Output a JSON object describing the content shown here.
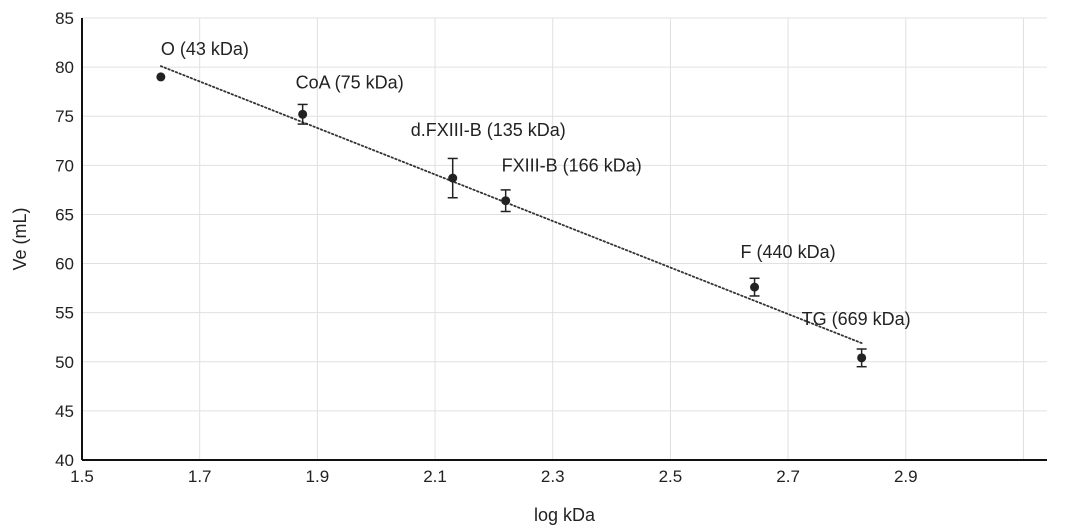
{
  "chart_data": {
    "type": "scatter",
    "title": "",
    "xlabel": "log kDa",
    "ylabel": "Ve (mL)",
    "xlim": [
      1.5,
      3.14
    ],
    "ylim": [
      40,
      85
    ],
    "xticks": [
      "1.5",
      "1.7",
      "1.9",
      "2.1",
      "2.3",
      "2.5",
      "2.7",
      "2.9"
    ],
    "yticks": [
      "40",
      "45",
      "50",
      "55",
      "60",
      "65",
      "70",
      "75",
      "80",
      "85"
    ],
    "grid": "vertical-and-horizontal",
    "points": [
      {
        "x": 1.634,
        "y": 79.0,
        "err": 0.0,
        "label": "O (43 kDa)"
      },
      {
        "x": 1.875,
        "y": 75.2,
        "err": 1.0,
        "label": "CoA (75 kDa)"
      },
      {
        "x": 2.13,
        "y": 68.7,
        "err": 2.0,
        "label": "d.FXIII-B (135 kDa)"
      },
      {
        "x": 2.22,
        "y": 66.4,
        "err": 1.1,
        "label": "FXIII-B (166 kDa)"
      },
      {
        "x": 2.643,
        "y": 57.6,
        "err": 0.9,
        "label": "F (440 kDa)"
      },
      {
        "x": 2.825,
        "y": 50.4,
        "err": 0.9,
        "label": "TG (669 kDa)"
      }
    ],
    "trendline": {
      "style": "dotted",
      "x1": 1.634,
      "y1": 80.1,
      "x2": 2.825,
      "y2": 51.9
    },
    "colors": {
      "marker": "#222222",
      "axis": "#111111",
      "grid": "#e0e0e0",
      "trendline": "#333333"
    }
  }
}
